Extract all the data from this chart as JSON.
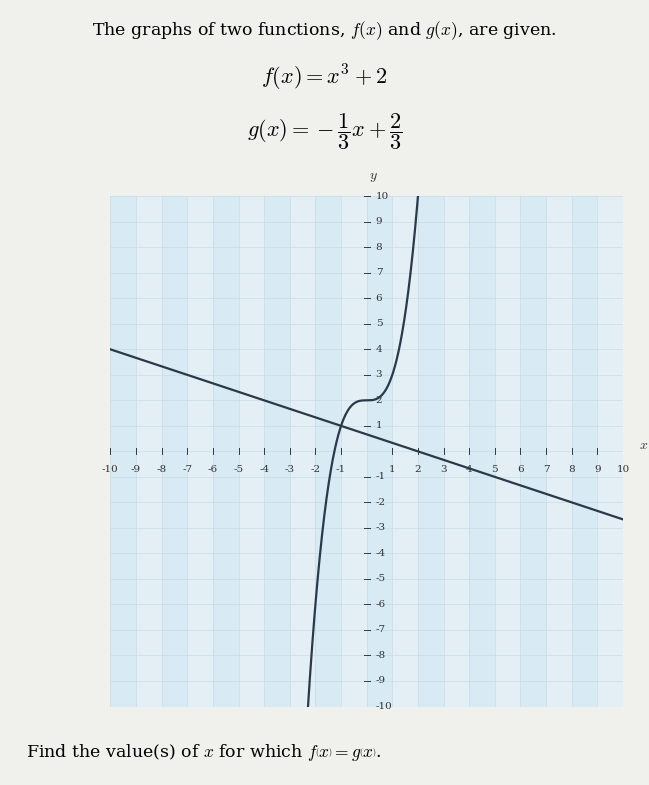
{
  "title_line1": "The graphs of two functions, $f(x)$ and $g(x)$, are given.",
  "formula_f": "$f(x) = x^3 + 2$",
  "formula_g": "$g(x) = -\\dfrac{1}{3}x + \\dfrac{2}{3}$",
  "question": "Find the value(s) of $x$ for which $f\\left(x\\right) = g\\left(x\\right)$.",
  "xlim": [
    -10,
    10
  ],
  "ylim": [
    -10,
    10
  ],
  "xticks": [
    -10,
    -9,
    -8,
    -7,
    -6,
    -5,
    -4,
    -3,
    -2,
    -1,
    1,
    2,
    3,
    4,
    5,
    6,
    7,
    8,
    9,
    10
  ],
  "yticks": [
    -10,
    -9,
    -8,
    -7,
    -6,
    -5,
    -4,
    -3,
    -2,
    -1,
    1,
    2,
    3,
    4,
    5,
    6,
    7,
    8,
    9,
    10
  ],
  "grid_color_light": "#c8dce8",
  "grid_color_dark": "#a8c4d8",
  "bg_color": "#f0f0ec",
  "plot_bg_color": "#e4eff5",
  "plot_bg_stripe": "#d8eaf4",
  "line_color": "#2a3a4a",
  "line_width": 1.6,
  "font_size_title": 12.5,
  "font_size_formula": 16,
  "font_size_question": 12.5,
  "font_size_ticks": 7.5,
  "font_size_axis_label": 10,
  "g_x_at_minus10": 4.0,
  "g_x_at_10": -2.6667
}
